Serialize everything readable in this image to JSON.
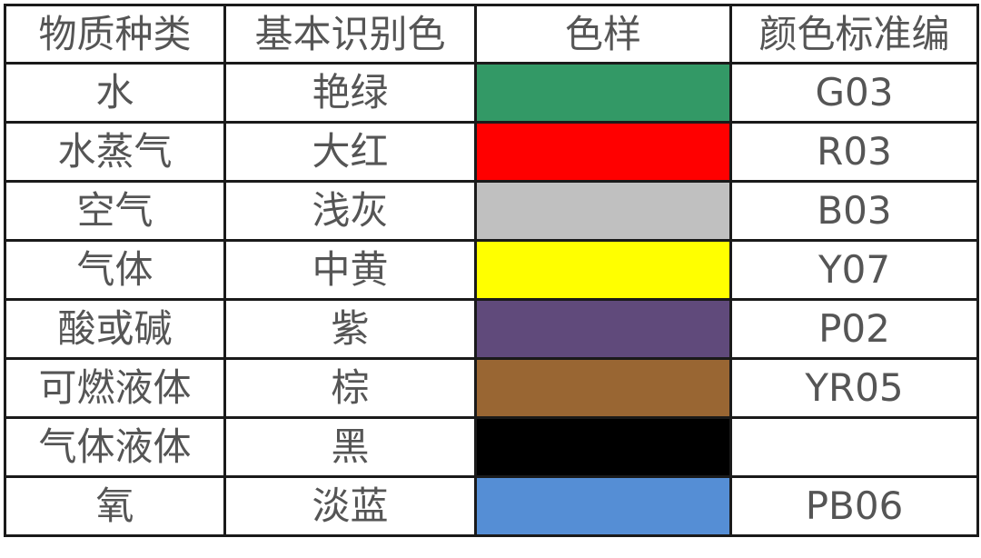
{
  "headers": [
    "物质种类",
    "基本识别色",
    "色样",
    "颜色标准编"
  ],
  "rows": [
    {
      "substance": "水",
      "color_name": "艳绿",
      "swatch": "#339966",
      "code": "G03"
    },
    {
      "substance": "水蒸气",
      "color_name": "大红",
      "swatch": "#FF0000",
      "code": "R03"
    },
    {
      "substance": "空气",
      "color_name": "浅灰",
      "swatch": "#C0C0C0",
      "code": "B03"
    },
    {
      "substance": "气体",
      "color_name": "中黄",
      "swatch": "#FFFF00",
      "code": "Y07"
    },
    {
      "substance": "酸或碱",
      "color_name": "紫",
      "swatch": "#604A7B",
      "code": "P02"
    },
    {
      "substance": "可燃液体",
      "color_name": "棕",
      "swatch": "#996633",
      "code": "YR05"
    },
    {
      "substance": "气体液体",
      "color_name": "黑",
      "swatch": "#000000",
      "code": ""
    },
    {
      "substance": "氧",
      "color_name": "淡蓝",
      "swatch": "#558ED5",
      "code": "PB06"
    }
  ]
}
